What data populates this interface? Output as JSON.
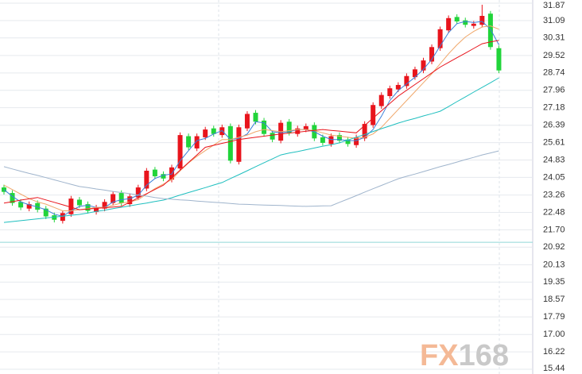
{
  "chart_data": {
    "type": "candlestick",
    "ylim": [
      15.44,
      31.87
    ],
    "yticks": [
      31.87,
      31.09,
      30.31,
      29.52,
      28.74,
      27.96,
      27.18,
      26.39,
      25.61,
      24.83,
      24.05,
      23.26,
      22.48,
      21.7,
      20.92,
      20.13,
      19.35,
      18.57,
      17.79,
      17.0,
      16.22,
      15.44
    ],
    "yticks_labels": [
      "31.87",
      "31.09",
      "30.31",
      "29.52",
      "28.74",
      "27.96",
      "27.18",
      "26.39",
      "25.61",
      "24.83",
      "24.05",
      "23.26",
      "22.48",
      "21.70",
      "20.92",
      "20.13",
      "19.35",
      "18.57",
      "17.79",
      "17.00",
      "16.22",
      "15.44"
    ],
    "grid": true,
    "up_color": "#e8141c",
    "down_color": "#21d43a",
    "open": [
      23.6,
      23.35,
      22.95,
      22.65,
      22.9,
      22.65,
      22.35,
      22.1,
      22.4,
      23.05,
      22.85,
      22.5,
      22.65,
      22.9,
      23.35,
      22.85,
      23.15,
      23.55,
      24.4,
      24.2,
      23.95,
      24.45,
      25.9,
      25.35,
      25.85,
      26.25,
      25.95,
      26.35,
      24.75,
      26.25,
      26.95,
      26.6,
      26.05,
      25.7,
      26.55,
      26.0,
      26.2,
      26.4,
      25.85,
      25.55,
      25.95,
      25.75,
      25.5,
      25.8,
      26.4,
      27.25,
      27.7,
      28.0,
      28.15,
      28.55,
      28.85,
      29.25,
      29.85,
      30.65,
      31.25,
      31.1,
      30.85,
      30.9,
      31.4,
      29.85
    ],
    "high": [
      23.72,
      23.47,
      23.07,
      22.97,
      23.02,
      22.77,
      22.47,
      22.57,
      23.22,
      23.17,
      22.97,
      22.82,
      23.07,
      23.42,
      23.47,
      23.32,
      23.72,
      24.47,
      24.52,
      24.32,
      24.62,
      26.07,
      26.02,
      26.02,
      26.32,
      26.37,
      26.42,
      26.47,
      26.42,
      27.02,
      27.07,
      26.72,
      26.17,
      26.62,
      26.67,
      26.37,
      26.47,
      26.52,
      25.97,
      26.02,
      26.07,
      25.87,
      25.97,
      26.57,
      27.42,
      27.87,
      28.17,
      28.32,
      28.72,
      29.02,
      29.42,
      30.02,
      30.82,
      31.32,
      31.37,
      31.22,
      31.07,
      31.8,
      31.52,
      29.97
    ],
    "low": [
      23.28,
      22.78,
      22.58,
      22.53,
      22.48,
      22.18,
      22.03,
      21.98,
      22.28,
      22.68,
      22.43,
      22.38,
      22.53,
      22.78,
      22.78,
      22.73,
      23.03,
      23.43,
      23.98,
      23.88,
      23.83,
      24.33,
      25.28,
      25.23,
      25.73,
      25.88,
      25.83,
      24.68,
      24.63,
      26.13,
      26.43,
      25.88,
      25.63,
      25.58,
      25.93,
      25.88,
      26.08,
      25.68,
      25.48,
      25.43,
      25.58,
      25.43,
      25.38,
      25.68,
      26.28,
      27.13,
      27.58,
      27.88,
      28.03,
      28.43,
      28.73,
      29.13,
      29.73,
      30.53,
      30.93,
      30.78,
      30.73,
      30.78,
      29.78,
      28.73
    ],
    "close": [
      23.4,
      22.9,
      22.7,
      22.85,
      22.6,
      22.3,
      22.15,
      22.45,
      23.1,
      22.8,
      22.55,
      22.7,
      22.95,
      23.3,
      22.9,
      23.2,
      23.6,
      24.35,
      24.1,
      24.0,
      24.5,
      25.95,
      25.4,
      25.9,
      26.2,
      26.0,
      26.3,
      24.8,
      26.3,
      26.9,
      26.55,
      26.0,
      25.75,
      26.5,
      26.05,
      26.25,
      26.35,
      25.8,
      25.6,
      25.9,
      25.7,
      25.55,
      25.85,
      26.45,
      27.3,
      27.75,
      28.05,
      28.2,
      28.6,
      28.9,
      29.3,
      29.9,
      30.7,
      31.2,
      31.05,
      30.9,
      30.95,
      31.3,
      29.9,
      28.85
    ],
    "series": [
      {
        "color": "#3b7fd9",
        "values": [
          23.5,
          23.2,
          22.95,
          22.82,
          22.72,
          22.6,
          22.4,
          22.3,
          22.55,
          22.75,
          22.8,
          22.7,
          22.7,
          22.95,
          23.05,
          23.1,
          23.25,
          23.7,
          24.0,
          24.15,
          24.2,
          24.8,
          25.25,
          25.7,
          25.8,
          26.0,
          26.15,
          25.75,
          25.8,
          26.0,
          26.55,
          26.5,
          26.1,
          26.05,
          26.1,
          26.2,
          26.2,
          26.1,
          25.9,
          25.75,
          25.75,
          25.7,
          25.7,
          25.85,
          26.2,
          26.8,
          27.5,
          27.95,
          28.25,
          28.55,
          28.9,
          29.35,
          29.95,
          30.55,
          30.95,
          31.05,
          31.0,
          31.05,
          30.7,
          30.0
        ]
      },
      {
        "color": "#f0a76a",
        "values": [
          23.7,
          23.5,
          23.3,
          23.1,
          22.95,
          22.85,
          22.7,
          22.55,
          22.55,
          22.6,
          22.65,
          22.7,
          22.7,
          22.8,
          22.9,
          22.95,
          23.05,
          23.3,
          23.55,
          23.75,
          23.95,
          24.35,
          24.7,
          25.0,
          25.25,
          25.5,
          25.75,
          25.75,
          25.85,
          25.95,
          26.1,
          26.2,
          26.15,
          26.1,
          26.15,
          26.2,
          26.2,
          26.15,
          26.05,
          25.95,
          25.9,
          25.85,
          25.8,
          25.85,
          26.0,
          26.3,
          26.7,
          27.1,
          27.5,
          27.9,
          28.3,
          28.7,
          29.15,
          29.6,
          30.0,
          30.35,
          30.6,
          30.8,
          30.85,
          30.7
        ]
      },
      {
        "color": "#e8141c",
        "values": [
          22.9,
          22.96,
          23.03,
          23.09,
          23.15,
          23.04,
          22.93,
          22.82,
          22.71,
          22.6,
          22.63,
          22.66,
          22.69,
          22.72,
          22.75,
          22.94,
          23.13,
          23.32,
          23.51,
          23.7,
          24.04,
          24.38,
          24.72,
          25.06,
          25.4,
          25.49,
          25.58,
          25.66,
          25.75,
          25.8,
          25.85,
          25.9,
          25.95,
          26.0,
          26.04,
          26.08,
          26.12,
          26.16,
          26.2,
          26.16,
          26.13,
          26.09,
          26.05,
          26.38,
          26.71,
          27.04,
          27.37,
          27.7,
          27.96,
          28.22,
          28.48,
          28.74,
          29.0,
          29.21,
          29.42,
          29.63,
          29.84,
          30.05,
          30.13,
          30.2
        ]
      },
      {
        "color": "#1fbfbf",
        "values": [
          22.03,
          22.07,
          22.11,
          22.15,
          22.19,
          22.23,
          22.27,
          22.31,
          22.35,
          22.39,
          22.45,
          22.52,
          22.58,
          22.65,
          22.71,
          22.77,
          22.84,
          22.9,
          22.97,
          23.03,
          23.14,
          23.26,
          23.37,
          23.48,
          23.59,
          23.71,
          23.82,
          24.0,
          24.17,
          24.35,
          24.53,
          24.71,
          24.88,
          25.06,
          25.14,
          25.21,
          25.29,
          25.37,
          25.45,
          25.52,
          25.6,
          25.73,
          25.85,
          25.98,
          26.11,
          26.24,
          26.36,
          26.49,
          26.6,
          26.7,
          26.81,
          26.91,
          27.02,
          27.23,
          27.45,
          27.66,
          27.88,
          28.09,
          28.3,
          28.52
        ]
      },
      {
        "color": "#9fb4cc",
        "values": [
          24.53,
          24.43,
          24.33,
          24.23,
          24.14,
          24.04,
          23.94,
          23.84,
          23.74,
          23.64,
          23.59,
          23.53,
          23.48,
          23.42,
          23.37,
          23.32,
          23.26,
          23.21,
          23.15,
          23.1,
          23.07,
          23.04,
          23.02,
          22.99,
          22.96,
          22.93,
          22.91,
          22.88,
          22.85,
          22.84,
          22.82,
          22.81,
          22.8,
          22.79,
          22.77,
          22.76,
          22.75,
          22.76,
          22.77,
          22.78,
          22.93,
          23.08,
          23.23,
          23.39,
          23.54,
          23.69,
          23.84,
          23.99,
          24.1,
          24.2,
          24.31,
          24.42,
          24.53,
          24.63,
          24.74,
          24.85,
          24.95,
          25.06,
          25.15,
          25.24
        ]
      }
    ],
    "reference_line": 21.14,
    "reference_color": "#8fd8d8",
    "watermark": [
      "FX",
      "168"
    ]
  }
}
